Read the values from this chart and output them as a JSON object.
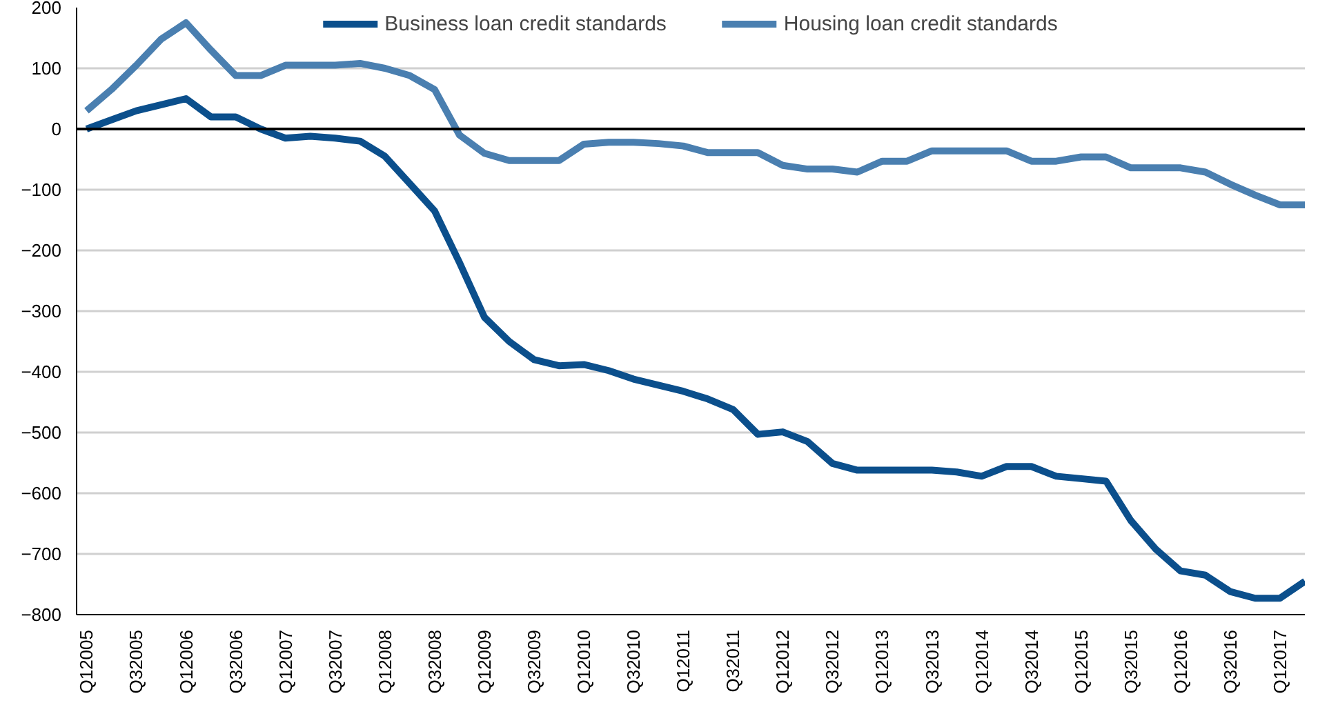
{
  "chart_data": {
    "type": "line",
    "categories": [
      "Q12005",
      null,
      "Q32005",
      null,
      "Q12006",
      null,
      "Q32006",
      null,
      "Q12007",
      null,
      "Q32007",
      null,
      "Q12008",
      null,
      "Q32008",
      null,
      "Q12009",
      null,
      "Q32009",
      null,
      "Q12010",
      null,
      "Q32010",
      null,
      "Q12011",
      null,
      "Q32011",
      null,
      "Q12012",
      null,
      "Q32012",
      null,
      "Q12013",
      null,
      "Q32013",
      null,
      "Q12014",
      null,
      "Q32014",
      null,
      "Q12015",
      null,
      "Q32015",
      null,
      "Q12016",
      null,
      "Q32016",
      null,
      "Q12017",
      null
    ],
    "series": [
      {
        "name": "Business loan credit standards",
        "color": "#0b4f8c",
        "values": [
          0,
          15,
          30,
          40,
          50,
          20,
          20,
          0,
          -15,
          -12,
          -15,
          -20,
          -45,
          -90,
          -135,
          -220,
          -310,
          -350,
          -380,
          -390,
          -388,
          -398,
          -412,
          -422,
          -432,
          -445,
          -462,
          -503,
          -499,
          -515,
          -551,
          -562,
          -562,
          -562,
          -562,
          -565,
          -572,
          -556,
          -556,
          -572,
          -576,
          -580,
          -645,
          -692,
          -728,
          -735,
          -762,
          -773,
          -773,
          -745
        ]
      },
      {
        "name": "Housing loan credit standards",
        "color": "#4a7fb0",
        "values": [
          30,
          65,
          105,
          148,
          175,
          130,
          88,
          88,
          105,
          105,
          105,
          108,
          100,
          88,
          65,
          -10,
          -40,
          -52,
          -52,
          -52,
          -25,
          -22,
          -22,
          -24,
          -28,
          -39,
          -39,
          -39,
          -60,
          -66,
          -66,
          -71,
          -53,
          -53,
          -36,
          -36,
          -36,
          -36,
          -53,
          -53,
          -46,
          -46,
          -64,
          -64,
          -64,
          -71,
          -91,
          -109,
          -125,
          -125
        ]
      }
    ],
    "ylim": [
      -800,
      200
    ],
    "yticks": [
      -800,
      -700,
      -600,
      -500,
      -400,
      -300,
      -200,
      -100,
      0,
      100,
      200
    ],
    "ref_lines": [
      {
        "axis": "y",
        "value": 0,
        "color": "#000000"
      }
    ],
    "grid": "y",
    "legend": "top"
  }
}
